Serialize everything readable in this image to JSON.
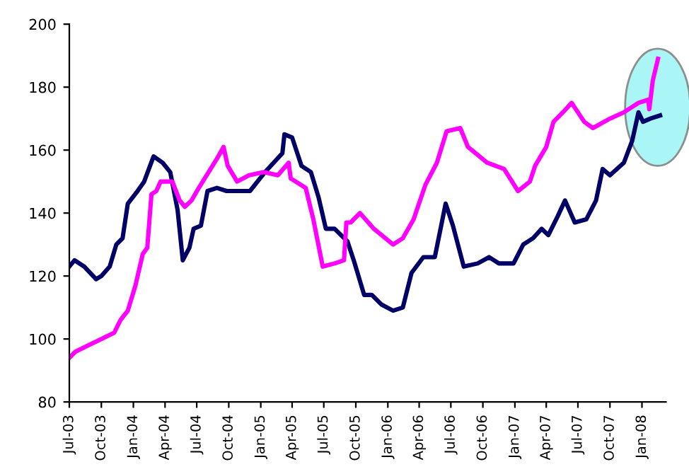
{
  "chart_data": {
    "type": "line",
    "ylim": [
      80,
      200
    ],
    "yticks": [
      80,
      100,
      120,
      140,
      160,
      180,
      200
    ],
    "xlim": [
      "2003-07-01",
      "2008-03-10"
    ],
    "xticks": [
      {
        "value": "2003-07-01",
        "label": "Jul-03"
      },
      {
        "value": "2003-10-01",
        "label": "Oct-03"
      },
      {
        "value": "2004-01-01",
        "label": "Jan-04"
      },
      {
        "value": "2004-04-01",
        "label": "Apr-04"
      },
      {
        "value": "2004-07-01",
        "label": "Jul-04"
      },
      {
        "value": "2004-10-01",
        "label": "Oct-04"
      },
      {
        "value": "2005-01-01",
        "label": "Jan-05"
      },
      {
        "value": "2005-04-01",
        "label": "Apr-05"
      },
      {
        "value": "2005-07-01",
        "label": "Jul-05"
      },
      {
        "value": "2005-10-01",
        "label": "Oct-05"
      },
      {
        "value": "2006-01-01",
        "label": "Jan-06"
      },
      {
        "value": "2006-04-01",
        "label": "Apr-06"
      },
      {
        "value": "2006-07-01",
        "label": "Jul-06"
      },
      {
        "value": "2006-10-01",
        "label": "Oct-06"
      },
      {
        "value": "2007-01-01",
        "label": "Jan-07"
      },
      {
        "value": "2007-04-01",
        "label": "Apr-07"
      },
      {
        "value": "2007-07-01",
        "label": "Jul-07"
      },
      {
        "value": "2007-10-01",
        "label": "Oct-07"
      },
      {
        "value": "2008-01-01",
        "label": "Jan-08"
      }
    ],
    "grid": false,
    "marker": "none",
    "line_style": "solid",
    "series": [
      {
        "color": "#000066",
        "x": [
          "2003-07-01",
          "2003-07-16",
          "2003-08-13",
          "2003-09-16",
          "2003-10-01",
          "2003-10-25",
          "2003-11-13",
          "2003-12-01",
          "2003-12-16",
          "2004-01-13",
          "2004-02-01",
          "2004-02-28",
          "2004-03-25",
          "2004-04-16",
          "2004-05-07",
          "2004-05-22",
          "2004-06-10",
          "2004-06-22",
          "2004-07-13",
          "2004-08-01",
          "2004-08-28",
          "2004-09-25",
          "2004-11-04",
          "2004-12-01",
          "2005-01-13",
          "2005-02-07",
          "2005-03-04",
          "2005-03-10",
          "2005-04-01",
          "2005-04-28",
          "2005-05-25",
          "2005-06-16",
          "2005-07-07",
          "2005-08-01",
          "2005-09-07",
          "2005-09-25",
          "2005-10-25",
          "2005-11-16",
          "2005-12-13",
          "2006-01-16",
          "2006-02-13",
          "2006-03-10",
          "2006-04-13",
          "2006-05-16",
          "2006-06-16",
          "2006-07-07",
          "2006-08-07",
          "2006-09-16",
          "2006-10-19",
          "2006-11-16",
          "2006-12-28",
          "2007-01-25",
          "2007-02-22",
          "2007-03-19",
          "2007-04-07",
          "2007-05-04",
          "2007-05-25",
          "2007-06-22",
          "2007-07-25",
          "2007-08-22",
          "2007-09-10",
          "2007-10-01",
          "2007-11-10",
          "2007-12-04",
          "2007-12-22",
          "2008-01-04",
          "2008-01-25",
          "2008-02-22"
        ],
        "values": [
          123,
          125,
          123,
          119,
          120,
          123,
          130,
          132,
          143,
          147,
          150,
          158,
          156,
          153,
          141,
          125,
          129,
          135,
          136,
          147,
          148,
          147,
          147,
          147,
          153,
          156,
          159,
          165,
          164,
          155,
          153,
          145,
          135,
          135,
          131,
          125,
          114,
          114,
          111,
          109,
          110,
          121,
          126,
          126,
          143,
          136,
          123,
          124,
          126,
          124,
          124,
          130,
          132,
          135,
          133,
          139,
          144,
          137,
          138,
          144,
          154,
          152,
          156,
          163,
          172,
          169,
          170,
          171
        ]
      },
      {
        "color": "#ff00ff",
        "x": [
          "2003-07-01",
          "2003-07-19",
          "2003-08-25",
          "2003-10-01",
          "2003-11-07",
          "2003-11-25",
          "2003-12-16",
          "2004-01-07",
          "2004-01-28",
          "2004-02-10",
          "2004-02-22",
          "2004-03-07",
          "2004-03-19",
          "2004-04-22",
          "2004-05-13",
          "2004-05-28",
          "2004-06-16",
          "2004-07-07",
          "2004-08-04",
          "2004-09-01",
          "2004-09-16",
          "2004-09-28",
          "2004-10-25",
          "2004-11-28",
          "2005-01-10",
          "2005-02-19",
          "2005-03-22",
          "2005-03-28",
          "2005-05-10",
          "2005-06-01",
          "2005-06-28",
          "2005-08-01",
          "2005-08-28",
          "2005-09-04",
          "2005-09-16",
          "2005-10-13",
          "2005-11-22",
          "2006-01-16",
          "2006-02-13",
          "2006-03-16",
          "2006-04-19",
          "2006-05-22",
          "2006-06-19",
          "2006-07-28",
          "2006-08-19",
          "2006-10-13",
          "2006-12-01",
          "2007-01-10",
          "2007-02-13",
          "2007-02-28",
          "2007-04-01",
          "2007-04-22",
          "2007-05-19",
          "2007-06-13",
          "2007-07-19",
          "2007-08-13",
          "2007-10-01",
          "2007-11-10",
          "2007-12-22",
          "2008-01-19",
          "2008-01-22",
          "2008-02-01",
          "2008-02-16"
        ],
        "values": [
          94,
          96,
          98,
          100,
          102,
          106,
          109,
          117,
          127,
          129,
          146,
          147,
          150,
          150,
          144,
          142,
          144,
          148,
          153,
          158,
          161,
          155,
          150,
          152,
          153,
          152,
          156,
          151,
          148,
          138,
          123,
          124,
          125,
          137,
          137,
          140,
          135,
          130,
          132,
          138,
          149,
          156,
          166,
          167,
          161,
          156,
          154,
          147,
          150,
          155,
          161,
          169,
          172,
          175,
          169,
          167,
          170,
          172,
          175,
          176,
          173,
          182,
          189
        ]
      }
    ]
  }
}
